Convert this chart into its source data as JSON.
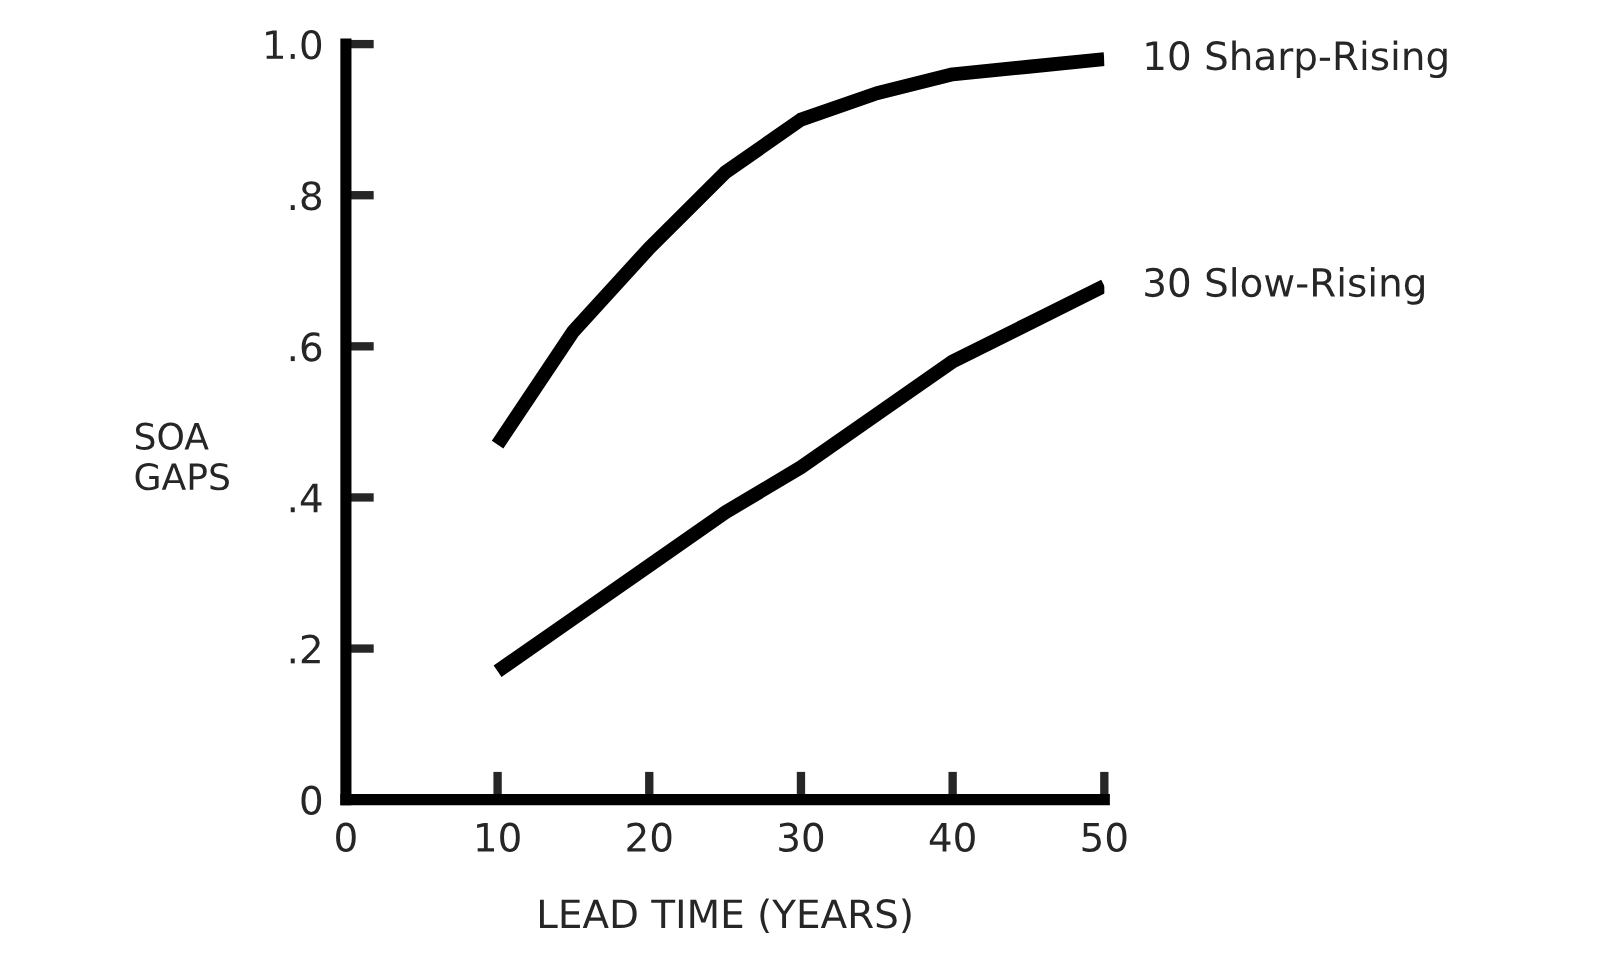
{
  "chart_data": {
    "type": "line",
    "xlabel": "LEAD TIME (YEARS)",
    "ylabel": "SOA\nGAPS",
    "x": [
      10,
      15,
      20,
      25,
      30,
      35,
      40,
      45,
      50
    ],
    "series": [
      {
        "name": "10 Sharp-Rising",
        "color": "#000000",
        "values": [
          0.47,
          0.62,
          0.73,
          0.83,
          0.9,
          0.935,
          0.96,
          0.97,
          0.98
        ]
      },
      {
        "name": "30 Slow-Rising",
        "color": "#000000",
        "values": [
          0.17,
          0.24,
          0.31,
          0.38,
          0.44,
          0.51,
          0.58,
          0.63,
          0.68
        ]
      }
    ],
    "xlim": [
      0,
      50
    ],
    "ylim": [
      0,
      1.0
    ],
    "xticks": [
      0,
      10,
      20,
      30,
      40,
      50
    ],
    "yticks": [
      0,
      {
        "value": 0.2,
        "label": ".2"
      },
      {
        "value": 0.4,
        "label": ".4"
      },
      {
        "value": 0.6,
        "label": ".6"
      },
      {
        "value": 0.8,
        "label": ".8"
      },
      {
        "value": 1.0,
        "label": "1.0"
      }
    ],
    "grid": false,
    "legend": false,
    "marker": "none",
    "line_style": "solid"
  }
}
